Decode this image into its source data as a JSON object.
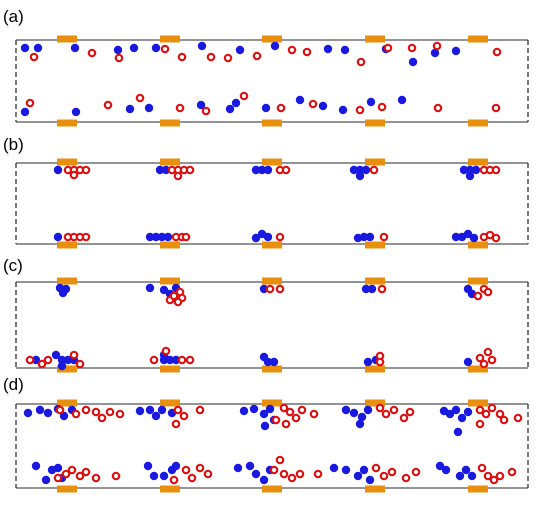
{
  "colors": {
    "blue_particle": "#1919e0",
    "red_particle": "#dd1111",
    "electrode": "#e8900e",
    "frame": "#555555"
  },
  "panels": [
    {
      "label": "(a)",
      "blue": [
        [
          25,
          48
        ],
        [
          38,
          48
        ],
        [
          75,
          48
        ],
        [
          118,
          50
        ],
        [
          134,
          48
        ],
        [
          156,
          48
        ],
        [
          202,
          46
        ],
        [
          240,
          50
        ],
        [
          275,
          46
        ],
        [
          328,
          49
        ],
        [
          345,
          50
        ],
        [
          386,
          49
        ],
        [
          413,
          62
        ],
        [
          435,
          53
        ],
        [
          456,
          51
        ],
        [
          25,
          112
        ],
        [
          76,
          112
        ],
        [
          130,
          109
        ],
        [
          149,
          108
        ],
        [
          201,
          105
        ],
        [
          230,
          109
        ],
        [
          236,
          103
        ],
        [
          266,
          108
        ],
        [
          300,
          100
        ],
        [
          323,
          106
        ],
        [
          343,
          110
        ],
        [
          371,
          102
        ],
        [
          402,
          100
        ]
      ],
      "red": [
        [
          34,
          57
        ],
        [
          92,
          53
        ],
        [
          119,
          58
        ],
        [
          165,
          49
        ],
        [
          182,
          57
        ],
        [
          211,
          57
        ],
        [
          228,
          58
        ],
        [
          257,
          56
        ],
        [
          292,
          50
        ],
        [
          307,
          52
        ],
        [
          361,
          62
        ],
        [
          388,
          48
        ],
        [
          412,
          48
        ],
        [
          437,
          46
        ],
        [
          497,
          52
        ],
        [
          30,
          103
        ],
        [
          108,
          105
        ],
        [
          140,
          98
        ],
        [
          180,
          108
        ],
        [
          206,
          111
        ],
        [
          244,
          96
        ],
        [
          281,
          108
        ],
        [
          313,
          104
        ],
        [
          360,
          110
        ],
        [
          382,
          107
        ],
        [
          438,
          108
        ],
        [
          496,
          108
        ]
      ]
    },
    {
      "label": "(b)",
      "blue": [
        [
          58,
          170
        ],
        [
          160,
          170
        ],
        [
          166,
          170
        ],
        [
          256,
          170
        ],
        [
          262,
          170
        ],
        [
          268,
          170
        ],
        [
          354,
          170
        ],
        [
          360,
          170
        ],
        [
          366,
          170
        ],
        [
          360,
          176
        ],
        [
          464,
          170
        ],
        [
          470,
          170
        ],
        [
          470,
          176
        ],
        [
          476,
          170
        ],
        [
          58,
          237
        ],
        [
          150,
          237
        ],
        [
          156,
          237
        ],
        [
          162,
          237
        ],
        [
          168,
          237
        ],
        [
          256,
          238
        ],
        [
          262,
          234
        ],
        [
          268,
          237
        ],
        [
          358,
          238
        ],
        [
          364,
          237
        ],
        [
          370,
          237
        ],
        [
          456,
          237
        ],
        [
          462,
          237
        ],
        [
          468,
          234
        ],
        [
          474,
          238
        ]
      ],
      "red": [
        [
          68,
          170
        ],
        [
          74,
          170
        ],
        [
          80,
          170
        ],
        [
          74,
          175
        ],
        [
          86,
          170
        ],
        [
          172,
          170
        ],
        [
          178,
          170
        ],
        [
          184,
          170
        ],
        [
          190,
          170
        ],
        [
          178,
          176
        ],
        [
          280,
          170
        ],
        [
          286,
          170
        ],
        [
          374,
          170
        ],
        [
          484,
          170
        ],
        [
          490,
          170
        ],
        [
          496,
          170
        ],
        [
          68,
          237
        ],
        [
          74,
          237
        ],
        [
          80,
          237
        ],
        [
          86,
          237
        ],
        [
          176,
          237
        ],
        [
          182,
          237
        ],
        [
          186,
          237
        ],
        [
          280,
          237
        ],
        [
          384,
          237
        ],
        [
          484,
          237
        ],
        [
          490,
          235
        ],
        [
          496,
          238
        ]
      ]
    },
    {
      "label": "(c)",
      "blue": [
        [
          60,
          288
        ],
        [
          66,
          289
        ],
        [
          63,
          293
        ],
        [
          150,
          288
        ],
        [
          164,
          290
        ],
        [
          170,
          294
        ],
        [
          176,
          288
        ],
        [
          264,
          289
        ],
        [
          366,
          289
        ],
        [
          372,
          289
        ],
        [
          468,
          289
        ],
        [
          472,
          294
        ],
        [
          36,
          360
        ],
        [
          56,
          355
        ],
        [
          62,
          360
        ],
        [
          62,
          366
        ],
        [
          68,
          360
        ],
        [
          74,
          360
        ],
        [
          164,
          355
        ],
        [
          164,
          360
        ],
        [
          170,
          360
        ],
        [
          176,
          360
        ],
        [
          264,
          357
        ],
        [
          268,
          362
        ],
        [
          274,
          362
        ],
        [
          368,
          362
        ],
        [
          376,
          360
        ],
        [
          468,
          362
        ]
      ],
      "red": [
        [
          170,
          300
        ],
        [
          174,
          296
        ],
        [
          180,
          292
        ],
        [
          182,
          298
        ],
        [
          178,
          302
        ],
        [
          270,
          289
        ],
        [
          280,
          289
        ],
        [
          382,
          289
        ],
        [
          484,
          289
        ],
        [
          488,
          292
        ],
        [
          478,
          296
        ],
        [
          30,
          360
        ],
        [
          42,
          364
        ],
        [
          48,
          360
        ],
        [
          74,
          355
        ],
        [
          80,
          364
        ],
        [
          154,
          360
        ],
        [
          166,
          351
        ],
        [
          182,
          360
        ],
        [
          190,
          360
        ],
        [
          380,
          356
        ],
        [
          380,
          362
        ],
        [
          488,
          352
        ],
        [
          480,
          358
        ],
        [
          484,
          364
        ],
        [
          492,
          360
        ]
      ]
    },
    {
      "label": "(d)",
      "blue": [
        [
          28,
          413
        ],
        [
          40,
          410
        ],
        [
          48,
          413
        ],
        [
          58,
          409
        ],
        [
          64,
          416
        ],
        [
          72,
          410
        ],
        [
          140,
          411
        ],
        [
          150,
          410
        ],
        [
          162,
          410
        ],
        [
          156,
          416
        ],
        [
          172,
          413
        ],
        [
          244,
          411
        ],
        [
          254,
          409
        ],
        [
          264,
          414
        ],
        [
          270,
          409
        ],
        [
          274,
          420
        ],
        [
          265,
          426
        ],
        [
          346,
          410
        ],
        [
          354,
          413
        ],
        [
          362,
          417
        ],
        [
          368,
          410
        ],
        [
          360,
          424
        ],
        [
          444,
          411
        ],
        [
          450,
          414
        ],
        [
          456,
          410
        ],
        [
          462,
          418
        ],
        [
          468,
          412
        ],
        [
          458,
          432
        ],
        [
          36,
          466
        ],
        [
          46,
          480
        ],
        [
          52,
          470
        ],
        [
          58,
          468
        ],
        [
          62,
          478
        ],
        [
          148,
          466
        ],
        [
          154,
          476
        ],
        [
          164,
          476
        ],
        [
          172,
          470
        ],
        [
          176,
          466
        ],
        [
          238,
          468
        ],
        [
          250,
          466
        ],
        [
          256,
          474
        ],
        [
          264,
          480
        ],
        [
          270,
          470
        ],
        [
          334,
          468
        ],
        [
          346,
          470
        ],
        [
          358,
          476
        ],
        [
          364,
          470
        ],
        [
          370,
          480
        ],
        [
          440,
          466
        ],
        [
          446,
          470
        ],
        [
          460,
          476
        ],
        [
          466,
          470
        ],
        [
          472,
          476
        ]
      ],
      "red": [
        [
          60,
          410
        ],
        [
          76,
          414
        ],
        [
          86,
          410
        ],
        [
          96,
          412
        ],
        [
          102,
          418
        ],
        [
          110,
          412
        ],
        [
          120,
          414
        ],
        [
          178,
          410
        ],
        [
          184,
          416
        ],
        [
          200,
          410
        ],
        [
          176,
          424
        ],
        [
          284,
          408
        ],
        [
          290,
          412
        ],
        [
          296,
          418
        ],
        [
          302,
          410
        ],
        [
          314,
          414
        ],
        [
          286,
          424
        ],
        [
          276,
          420
        ],
        [
          380,
          408
        ],
        [
          386,
          414
        ],
        [
          394,
          410
        ],
        [
          410,
          412
        ],
        [
          404,
          418
        ],
        [
          480,
          410
        ],
        [
          486,
          414
        ],
        [
          492,
          408
        ],
        [
          500,
          414
        ],
        [
          504,
          420
        ],
        [
          518,
          418
        ],
        [
          480,
          424
        ],
        [
          58,
          478
        ],
        [
          66,
          474
        ],
        [
          72,
          470
        ],
        [
          80,
          476
        ],
        [
          86,
          472
        ],
        [
          96,
          478
        ],
        [
          116,
          476
        ],
        [
          186,
          470
        ],
        [
          192,
          478
        ],
        [
          200,
          468
        ],
        [
          208,
          474
        ],
        [
          174,
          480
        ],
        [
          280,
          460
        ],
        [
          274,
          470
        ],
        [
          284,
          474
        ],
        [
          292,
          478
        ],
        [
          300,
          474
        ],
        [
          318,
          474
        ],
        [
          376,
          468
        ],
        [
          384,
          476
        ],
        [
          392,
          472
        ],
        [
          406,
          478
        ],
        [
          416,
          472
        ],
        [
          482,
          468
        ],
        [
          488,
          476
        ],
        [
          494,
          480
        ],
        [
          500,
          476
        ],
        [
          512,
          472
        ]
      ]
    }
  ]
}
